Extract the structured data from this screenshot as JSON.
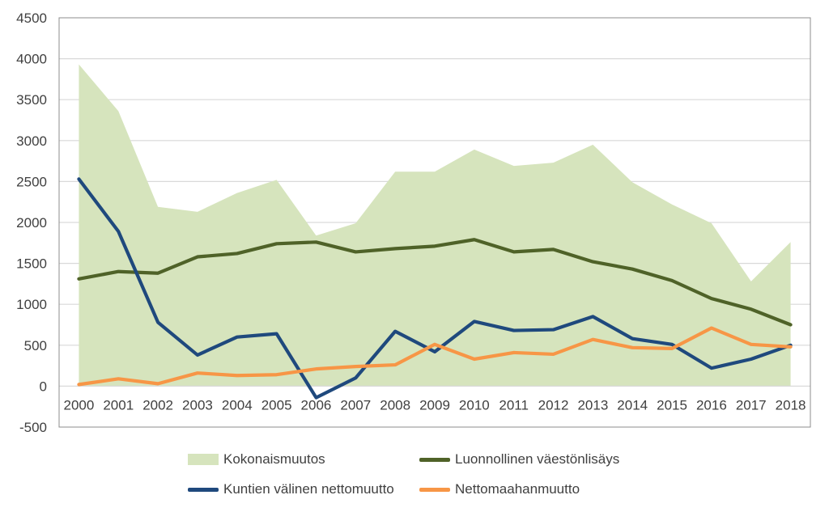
{
  "chart_data": {
    "type": "area",
    "x": [
      "2000",
      "2001",
      "2002",
      "2003",
      "2004",
      "2005",
      "2006",
      "2007",
      "2008",
      "2009",
      "2010",
      "2011",
      "2012",
      "2013",
      "2014",
      "2015",
      "2016",
      "2017",
      "2018"
    ],
    "ylim": [
      -500,
      4500
    ],
    "yticks": [
      -500,
      0,
      500,
      1000,
      1500,
      2000,
      2500,
      3000,
      3500,
      4000,
      4500
    ],
    "grid": true,
    "legend_position": "bottom",
    "series": [
      {
        "name": "Kokonaismuutos",
        "kind": "area",
        "color": "#d6e4bd",
        "values": [
          3930,
          3360,
          2190,
          2130,
          2360,
          2520,
          1840,
          1990,
          2620,
          2620,
          2890,
          2690,
          2730,
          2950,
          2490,
          2220,
          1990,
          1280,
          1760
        ]
      },
      {
        "name": "Luonnollinen väestönlisäys",
        "kind": "line",
        "color": "#4f6228",
        "values": [
          1310,
          1400,
          1380,
          1580,
          1620,
          1740,
          1760,
          1640,
          1680,
          1710,
          1790,
          1640,
          1670,
          1520,
          1430,
          1290,
          1070,
          940,
          750
        ]
      },
      {
        "name": "Kuntien välinen nettomuutto",
        "kind": "line",
        "color": "#1f497d",
        "values": [
          2530,
          1890,
          780,
          380,
          600,
          640,
          -140,
          100,
          670,
          420,
          790,
          680,
          690,
          850,
          580,
          510,
          220,
          330,
          500
        ]
      },
      {
        "name": "Nettomaahanmuutto",
        "kind": "line",
        "color": "#f79646",
        "values": [
          20,
          90,
          30,
          160,
          130,
          140,
          210,
          240,
          260,
          510,
          330,
          410,
          390,
          570,
          470,
          460,
          710,
          510,
          480
        ]
      }
    ]
  }
}
